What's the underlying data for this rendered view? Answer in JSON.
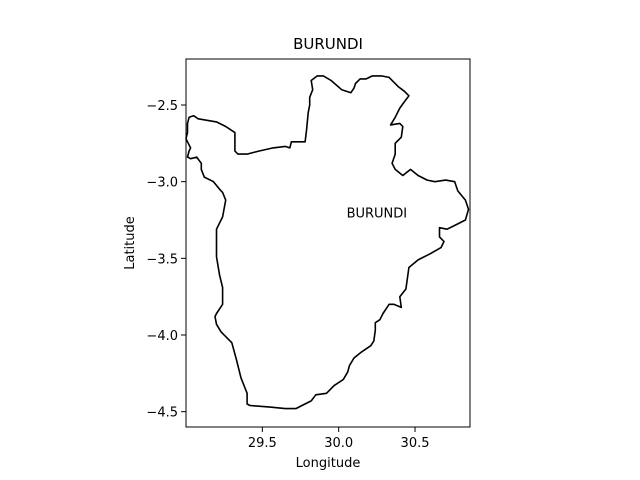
{
  "title": "BURUNDI",
  "xlabel": "Longitude",
  "ylabel": "Latitude",
  "annotation": {
    "text": "BURUNDI",
    "lon": 30.25,
    "lat": -3.2
  },
  "xlim": [
    29.0,
    30.86
  ],
  "ylim": [
    -4.6,
    -2.2
  ],
  "xticks": [
    29.5,
    30.0,
    30.5
  ],
  "yticks": [
    -2.5,
    -3.0,
    -3.5,
    -4.0,
    -4.5
  ],
  "xtick_labels": [
    "29.5",
    "30.0",
    "30.5"
  ],
  "ytick_labels": [
    "−2.5",
    "−3.0",
    "−3.5",
    "−4.0",
    "−4.5"
  ],
  "colors": {
    "outline": "#000000",
    "frame": "#000000",
    "background": "#ffffff"
  },
  "border": [
    [
      29.02,
      -2.58
    ],
    [
      29.05,
      -2.57
    ],
    [
      29.08,
      -2.59
    ],
    [
      29.2,
      -2.61
    ],
    [
      29.26,
      -2.64
    ],
    [
      29.32,
      -2.68
    ],
    [
      29.32,
      -2.8
    ],
    [
      29.34,
      -2.82
    ],
    [
      29.4,
      -2.82
    ],
    [
      29.48,
      -2.8
    ],
    [
      29.57,
      -2.78
    ],
    [
      29.65,
      -2.77
    ],
    [
      29.68,
      -2.78
    ],
    [
      29.69,
      -2.74
    ],
    [
      29.75,
      -2.74
    ],
    [
      29.78,
      -2.74
    ],
    [
      29.79,
      -2.66
    ],
    [
      29.8,
      -2.55
    ],
    [
      29.81,
      -2.5
    ],
    [
      29.81,
      -2.45
    ],
    [
      29.83,
      -2.4
    ],
    [
      29.82,
      -2.34
    ],
    [
      29.86,
      -2.31
    ],
    [
      29.9,
      -2.31
    ],
    [
      29.95,
      -2.34
    ],
    [
      30.02,
      -2.4
    ],
    [
      30.05,
      -2.41
    ],
    [
      30.08,
      -2.42
    ],
    [
      30.1,
      -2.39
    ],
    [
      30.11,
      -2.36
    ],
    [
      30.14,
      -2.33
    ],
    [
      30.18,
      -2.33
    ],
    [
      30.22,
      -2.31
    ],
    [
      30.28,
      -2.31
    ],
    [
      30.33,
      -2.32
    ],
    [
      30.39,
      -2.38
    ],
    [
      30.43,
      -2.41
    ],
    [
      30.46,
      -2.44
    ],
    [
      30.43,
      -2.48
    ],
    [
      30.4,
      -2.52
    ],
    [
      30.37,
      -2.58
    ],
    [
      30.34,
      -2.63
    ],
    [
      30.4,
      -2.62
    ],
    [
      30.42,
      -2.64
    ],
    [
      30.41,
      -2.71
    ],
    [
      30.37,
      -2.75
    ],
    [
      30.37,
      -2.82
    ],
    [
      30.35,
      -2.88
    ],
    [
      30.37,
      -2.92
    ],
    [
      30.42,
      -2.96
    ],
    [
      30.47,
      -2.92
    ],
    [
      30.52,
      -2.96
    ],
    [
      30.58,
      -2.99
    ],
    [
      30.63,
      -3.0
    ],
    [
      30.7,
      -2.99
    ],
    [
      30.76,
      -3.0
    ],
    [
      30.78,
      -3.06
    ],
    [
      30.83,
      -3.12
    ],
    [
      30.85,
      -3.18
    ],
    [
      30.83,
      -3.25
    ],
    [
      30.77,
      -3.28
    ],
    [
      30.71,
      -3.31
    ],
    [
      30.66,
      -3.3
    ],
    [
      30.66,
      -3.36
    ],
    [
      30.69,
      -3.39
    ],
    [
      30.67,
      -3.43
    ],
    [
      30.6,
      -3.47
    ],
    [
      30.52,
      -3.51
    ],
    [
      30.46,
      -3.56
    ],
    [
      30.45,
      -3.63
    ],
    [
      30.44,
      -3.7
    ],
    [
      30.4,
      -3.75
    ],
    [
      30.41,
      -3.82
    ],
    [
      30.36,
      -3.8
    ],
    [
      30.33,
      -3.8
    ],
    [
      30.29,
      -3.86
    ],
    [
      30.27,
      -3.9
    ],
    [
      30.24,
      -3.92
    ],
    [
      30.24,
      -3.97
    ],
    [
      30.23,
      -4.04
    ],
    [
      30.21,
      -4.07
    ],
    [
      30.15,
      -4.11
    ],
    [
      30.1,
      -4.15
    ],
    [
      30.07,
      -4.2
    ],
    [
      30.06,
      -4.24
    ],
    [
      30.03,
      -4.29
    ],
    [
      29.97,
      -4.33
    ],
    [
      29.92,
      -4.38
    ],
    [
      29.85,
      -4.39
    ],
    [
      29.82,
      -4.43
    ],
    [
      29.76,
      -4.46
    ],
    [
      29.72,
      -4.48
    ],
    [
      29.65,
      -4.48
    ],
    [
      29.55,
      -4.47
    ],
    [
      29.42,
      -4.46
    ],
    [
      29.4,
      -4.45
    ],
    [
      29.4,
      -4.38
    ],
    [
      29.36,
      -4.28
    ],
    [
      29.33,
      -4.16
    ],
    [
      29.3,
      -4.05
    ],
    [
      29.23,
      -3.98
    ],
    [
      29.2,
      -3.93
    ],
    [
      29.19,
      -3.88
    ],
    [
      29.2,
      -3.86
    ],
    [
      29.24,
      -3.8
    ],
    [
      29.24,
      -3.69
    ],
    [
      29.22,
      -3.61
    ],
    [
      29.2,
      -3.49
    ],
    [
      29.2,
      -3.4
    ],
    [
      29.2,
      -3.31
    ],
    [
      29.24,
      -3.23
    ],
    [
      29.26,
      -3.12
    ],
    [
      29.24,
      -3.07
    ],
    [
      29.22,
      -3.05
    ],
    [
      29.18,
      -3.0
    ],
    [
      29.12,
      -2.97
    ],
    [
      29.1,
      -2.92
    ],
    [
      29.1,
      -2.88
    ],
    [
      29.07,
      -2.84
    ],
    [
      29.03,
      -2.85
    ],
    [
      29.01,
      -2.84
    ],
    [
      29.02,
      -2.8
    ],
    [
      29.03,
      -2.78
    ],
    [
      29.01,
      -2.74
    ],
    [
      29.0,
      -2.72
    ],
    [
      29.01,
      -2.68
    ],
    [
      29.01,
      -2.62
    ],
    [
      29.02,
      -2.58
    ]
  ]
}
